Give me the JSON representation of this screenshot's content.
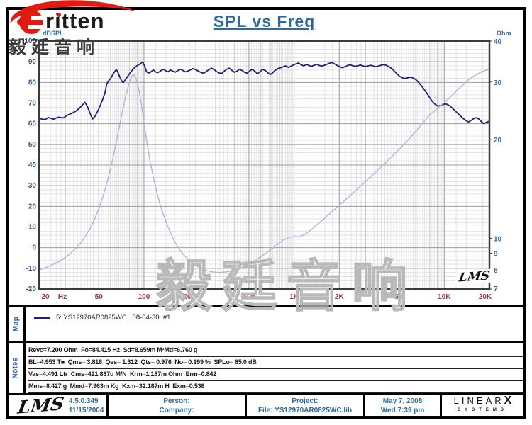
{
  "title": "SPL vs Freq",
  "brand": {
    "logo_text": "ritten",
    "logo_cn": "毅廷音响",
    "watermark": "毅廷音响"
  },
  "colors": {
    "title": "#2f6b99",
    "x_labels": "#9c2f4f",
    "left_labels": "#2d4f82",
    "right_labels": "#336699",
    "spl_curve": "#20207a",
    "impedance_curve": "#b2b2d9",
    "grid_major": "#9b9b9b",
    "grid_minor": "#c8c8c8",
    "grid_fine": "#e3e3e3",
    "frame": "#3b3b3b",
    "accent_red": "#e01b12"
  },
  "chart_data": {
    "type": "line",
    "title": "SPL vs Freq",
    "plot_mark": "LMS",
    "x_axis": {
      "scale": "log",
      "min": 20,
      "max": 20000,
      "unit": "Hz",
      "ticks": [
        [
          20,
          "20"
        ],
        [
          50,
          "50"
        ],
        [
          100,
          "100"
        ],
        [
          200,
          "200"
        ],
        [
          500,
          "500"
        ],
        [
          1000,
          "1K"
        ],
        [
          2000,
          "2K"
        ],
        [
          5000,
          "5K"
        ],
        [
          10000,
          "10K"
        ],
        [
          20000,
          "20K"
        ]
      ]
    },
    "y_left": {
      "label": "dBSPL",
      "min": -20,
      "max": 100,
      "major_step": 10,
      "minor_step": 2,
      "ticks": [
        100,
        90,
        80,
        70,
        60,
        50,
        40,
        30,
        20,
        10,
        0,
        -10,
        -20
      ]
    },
    "y_right": {
      "label": "Ohm",
      "scale": "log",
      "min": 7,
      "max": 40,
      "ticks": [
        40,
        30,
        20,
        10,
        9,
        8,
        7
      ]
    },
    "series": [
      {
        "name": "SPL",
        "axis": "left",
        "color": "#20207a",
        "points": [
          [
            20,
            62.5
          ],
          [
            22,
            62.0
          ],
          [
            23,
            63.0
          ],
          [
            25,
            62.2
          ],
          [
            27,
            63.2
          ],
          [
            29,
            62.8
          ],
          [
            31,
            64.2
          ],
          [
            33,
            65.0
          ],
          [
            35,
            66.0
          ],
          [
            37,
            67.4
          ],
          [
            39,
            69.2
          ],
          [
            40.5,
            70.4
          ],
          [
            42,
            68.3
          ],
          [
            44,
            64.6
          ],
          [
            45.5,
            62.3
          ],
          [
            47,
            63.4
          ],
          [
            49,
            65.8
          ],
          [
            51,
            68.6
          ],
          [
            53,
            71.6
          ],
          [
            55,
            75.0
          ],
          [
            56.5,
            79.2
          ],
          [
            58,
            80.6
          ],
          [
            60,
            82.0
          ],
          [
            62,
            83.8
          ],
          [
            64,
            85.4
          ],
          [
            65.5,
            86.2
          ],
          [
            67,
            85.0
          ],
          [
            69,
            82.6
          ],
          [
            71,
            80.8
          ],
          [
            72.5,
            79.9
          ],
          [
            74,
            80.6
          ],
          [
            76,
            81.8
          ],
          [
            79,
            83.6
          ],
          [
            82,
            85.2
          ],
          [
            85,
            86.6
          ],
          [
            88,
            87.6
          ],
          [
            91,
            88.3
          ],
          [
            94,
            88.9
          ],
          [
            96,
            89.4
          ],
          [
            98,
            89.9
          ],
          [
            100,
            88.6
          ],
          [
            102,
            87.0
          ],
          [
            104,
            85.2
          ],
          [
            107,
            84.5
          ],
          [
            110,
            84.8
          ],
          [
            113,
            85.5
          ],
          [
            116,
            86.0
          ],
          [
            119,
            85.2
          ],
          [
            123,
            84.7
          ],
          [
            127,
            85.2
          ],
          [
            131,
            85.9
          ],
          [
            135,
            86.3
          ],
          [
            140,
            85.6
          ],
          [
            145,
            85.1
          ],
          [
            150,
            86.0
          ],
          [
            156,
            85.4
          ],
          [
            162,
            85.0
          ],
          [
            168,
            85.7
          ],
          [
            175,
            86.4
          ],
          [
            182,
            85.8
          ],
          [
            189,
            85.1
          ],
          [
            196,
            85.5
          ],
          [
            204,
            86.1
          ],
          [
            212,
            86.7
          ],
          [
            221,
            86.2
          ],
          [
            230,
            85.5
          ],
          [
            239,
            84.9
          ],
          [
            249,
            84.4
          ],
          [
            259,
            85.2
          ],
          [
            270,
            86.1
          ],
          [
            281,
            86.9
          ],
          [
            292,
            86.3
          ],
          [
            304,
            85.3
          ],
          [
            316,
            84.6
          ],
          [
            329,
            84.3
          ],
          [
            342,
            85.4
          ],
          [
            356,
            86.4
          ],
          [
            370,
            86.9
          ],
          [
            385,
            85.9
          ],
          [
            400,
            84.9
          ],
          [
            416,
            85.4
          ],
          [
            433,
            86.4
          ],
          [
            450,
            85.8
          ],
          [
            468,
            84.9
          ],
          [
            487,
            84.5
          ],
          [
            507,
            85.6
          ],
          [
            527,
            86.3
          ],
          [
            548,
            85.4
          ],
          [
            570,
            84.2
          ],
          [
            593,
            85.2
          ],
          [
            617,
            86.3
          ],
          [
            642,
            85.8
          ],
          [
            668,
            84.7
          ],
          [
            695,
            83.8
          ],
          [
            723,
            84.8
          ],
          [
            752,
            86.0
          ],
          [
            782,
            86.7
          ],
          [
            814,
            87.1
          ],
          [
            847,
            87.6
          ],
          [
            881,
            88.0
          ],
          [
            916,
            87.3
          ],
          [
            953,
            87.8
          ],
          [
            991,
            88.5
          ],
          [
            1031,
            89.0
          ],
          [
            1072,
            89.4
          ],
          [
            1115,
            88.5
          ],
          [
            1160,
            88.0
          ],
          [
            1207,
            88.7
          ],
          [
            1256,
            88.2
          ],
          [
            1306,
            87.8
          ],
          [
            1359,
            88.3
          ],
          [
            1414,
            88.8
          ],
          [
            1471,
            88.2
          ],
          [
            1530,
            87.9
          ],
          [
            1592,
            88.3
          ],
          [
            1656,
            88.8
          ],
          [
            1723,
            89.3
          ],
          [
            1792,
            89.6
          ],
          [
            1864,
            88.9
          ],
          [
            1939,
            88.2
          ],
          [
            2017,
            87.6
          ],
          [
            2098,
            87.1
          ],
          [
            2183,
            87.6
          ],
          [
            2271,
            88.2
          ],
          [
            2362,
            88.5
          ],
          [
            2457,
            88.1
          ],
          [
            2556,
            87.8
          ],
          [
            2659,
            88.1
          ],
          [
            2766,
            88.4
          ],
          [
            2877,
            88.0
          ],
          [
            2993,
            87.7
          ],
          [
            3114,
            88.0
          ],
          [
            3239,
            88.3
          ],
          [
            3369,
            87.9
          ],
          [
            3505,
            87.6
          ],
          [
            3646,
            87.9
          ],
          [
            3793,
            88.3
          ],
          [
            3946,
            88.6
          ],
          [
            4105,
            88.3
          ],
          [
            4270,
            87.7
          ],
          [
            4442,
            86.8
          ],
          [
            4621,
            85.7
          ],
          [
            4807,
            84.4
          ],
          [
            5000,
            83.2
          ],
          [
            5201,
            82.4
          ],
          [
            5411,
            81.9
          ],
          [
            5629,
            82.1
          ],
          [
            5856,
            82.5
          ],
          [
            6092,
            82.4
          ],
          [
            6337,
            81.8
          ],
          [
            6592,
            80.8
          ],
          [
            6858,
            79.4
          ],
          [
            7134,
            77.8
          ],
          [
            7421,
            76.2
          ],
          [
            7720,
            74.4
          ],
          [
            8031,
            72.4
          ],
          [
            8354,
            70.7
          ],
          [
            8690,
            69.4
          ],
          [
            9040,
            68.6
          ],
          [
            9404,
            68.7
          ],
          [
            9783,
            69.3
          ],
          [
            10177,
            69.6
          ],
          [
            10587,
            69.2
          ],
          [
            11013,
            68.3
          ],
          [
            11456,
            67.2
          ],
          [
            11917,
            66.0
          ],
          [
            12397,
            64.8
          ],
          [
            12896,
            63.6
          ],
          [
            13415,
            62.5
          ],
          [
            13955,
            61.5
          ],
          [
            14517,
            60.9
          ],
          [
            15101,
            61.6
          ],
          [
            15709,
            62.5
          ],
          [
            16341,
            62.9
          ],
          [
            16999,
            62.3
          ],
          [
            17683,
            61.0
          ],
          [
            18395,
            60.0
          ],
          [
            19135,
            60.7
          ],
          [
            19905,
            61.2
          ]
        ]
      },
      {
        "name": "Impedance",
        "axis": "right",
        "color": "#b2b2d9",
        "points": [
          [
            20,
            8.0
          ],
          [
            23,
            8.2
          ],
          [
            26,
            8.4
          ],
          [
            29,
            8.65
          ],
          [
            32,
            8.95
          ],
          [
            35,
            9.3
          ],
          [
            38,
            9.7
          ],
          [
            41,
            10.2
          ],
          [
            44,
            10.75
          ],
          [
            47,
            11.45
          ],
          [
            50,
            12.3
          ],
          [
            53,
            13.3
          ],
          [
            56,
            14.5
          ],
          [
            59,
            15.9
          ],
          [
            62,
            17.5
          ],
          [
            65,
            19.4
          ],
          [
            68,
            21.5
          ],
          [
            71,
            23.8
          ],
          [
            74,
            26.0
          ],
          [
            77,
            28.1
          ],
          [
            80,
            29.9
          ],
          [
            82,
            30.9
          ],
          [
            84,
            31.5
          ],
          [
            86,
            31.5
          ],
          [
            88,
            31.0
          ],
          [
            90,
            30.0
          ],
          [
            93,
            28.1
          ],
          [
            96,
            25.8
          ],
          [
            99,
            23.4
          ],
          [
            102,
            21.2
          ],
          [
            106,
            18.9
          ],
          [
            110,
            17.1
          ],
          [
            114,
            15.8
          ],
          [
            118,
            14.7
          ],
          [
            123,
            13.6
          ],
          [
            128,
            12.7
          ],
          [
            134,
            11.9
          ],
          [
            141,
            11.15
          ],
          [
            148,
            10.55
          ],
          [
            156,
            10.0
          ],
          [
            165,
            9.55
          ],
          [
            175,
            9.15
          ],
          [
            186,
            8.85
          ],
          [
            198,
            8.6
          ],
          [
            212,
            8.38
          ],
          [
            228,
            8.2
          ],
          [
            246,
            8.05
          ],
          [
            266,
            7.95
          ],
          [
            289,
            7.89
          ],
          [
            315,
            7.86
          ],
          [
            344,
            7.88
          ],
          [
            376,
            7.93
          ],
          [
            411,
            8.02
          ],
          [
            449,
            8.15
          ],
          [
            491,
            8.3
          ],
          [
            537,
            8.5
          ],
          [
            587,
            8.72
          ],
          [
            642,
            8.97
          ],
          [
            702,
            9.25
          ],
          [
            768,
            9.55
          ],
          [
            840,
            9.85
          ],
          [
            918,
            10.05
          ],
          [
            1000,
            10.12
          ],
          [
            1090,
            10.1
          ],
          [
            1190,
            10.3
          ],
          [
            1300,
            10.62
          ],
          [
            1420,
            11.0
          ],
          [
            1560,
            11.4
          ],
          [
            1710,
            11.85
          ],
          [
            1880,
            12.3
          ],
          [
            2070,
            12.8
          ],
          [
            2280,
            13.3
          ],
          [
            2510,
            13.85
          ],
          [
            2760,
            14.4
          ],
          [
            3040,
            15.0
          ],
          [
            3350,
            15.65
          ],
          [
            3690,
            16.3
          ],
          [
            4060,
            17.0
          ],
          [
            4470,
            17.75
          ],
          [
            4920,
            18.55
          ],
          [
            5420,
            19.4
          ],
          [
            5970,
            20.35
          ],
          [
            6570,
            21.4
          ],
          [
            7230,
            22.55
          ],
          [
            7960,
            23.8
          ],
          [
            8770,
            24.6
          ],
          [
            9650,
            25.6
          ],
          [
            10630,
            26.6
          ],
          [
            11700,
            27.8
          ],
          [
            12880,
            29.0
          ],
          [
            14180,
            30.2
          ],
          [
            15610,
            31.2
          ],
          [
            17180,
            32.0
          ],
          [
            18920,
            32.6
          ],
          [
            20000,
            32.8
          ]
        ]
      }
    ]
  },
  "map": {
    "label": "Map",
    "legend": "5: YS12970AR0825WC   08-04-30  #1"
  },
  "notes": {
    "label": "Notes",
    "lines": [
      "Revc=7.200 Ohm  Fo=84.415 Hz  Sd=8.659m M²Md=6.760 g",
      "BL=4.953 T■  Qms= 3.818  Qes= 1.312  Qts= 0.976  No= 0.199 %  SPLo= 85.0 dB",
      "Vas=4.491 Ltr  Cms=421.837u M/N  Krm=1.187m Ohm  Erm=0.842",
      "Mms=8.427 g  Mmd=7.963m Kg  Kxm=32.187m H  Exm=0.536"
    ]
  },
  "footer": {
    "lms_logo": "LMS",
    "version": "4.5.0.349",
    "version_date": "11/15/2004",
    "person_label": "Person:",
    "company_label": "Company:",
    "project_label": "Project:",
    "file_label": "File: YS12970AR0825WC.lib",
    "date": "May 7, 2008",
    "time": "Wed 7:39 pm",
    "linearx_a": "LINEAR",
    "linearx_x": "X",
    "systems": "SYSTEMS"
  }
}
